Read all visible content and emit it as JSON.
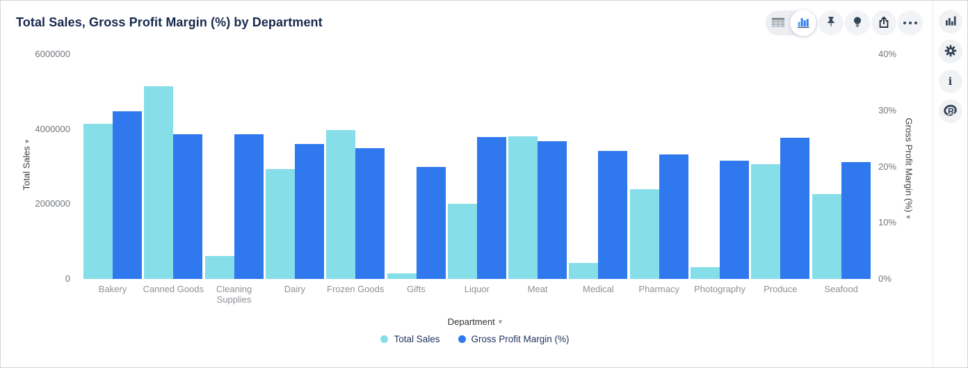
{
  "header": {
    "title": "Total Sales, Gross Profit Margin (%) by Department"
  },
  "glyphs": {
    "caret_down": "▾"
  },
  "toolbar": {
    "icons": [
      "table-view-icon",
      "bar-chart-view-icon",
      "pin-icon",
      "lightbulb-icon",
      "export-icon",
      "more-options-icon"
    ],
    "selected_view": "chart"
  },
  "right_rail": {
    "icons": [
      "chart-type-icon",
      "settings-gear-icon",
      "info-icon",
      "r-logo-icon"
    ],
    "info_glyph": "i",
    "r_glyph": "R"
  },
  "colors": {
    "series_total_sales": "#85dee8",
    "series_gross_profit_margin": "#2f78ee",
    "title_text": "#16294c",
    "icon_navy": "#33475b",
    "accent_blue": "#2f7ced"
  },
  "chart_data": {
    "type": "bar",
    "subtype": "grouped-dual-axis",
    "grid": false,
    "legend_position": "bottom-center",
    "categories": [
      "Bakery",
      "Canned Goods",
      "Cleaning Supplies",
      "Dairy",
      "Frozen Goods",
      "Gifts",
      "Liquor",
      "Meat",
      "Medical",
      "Pharmacy",
      "Photography",
      "Produce",
      "Seafood"
    ],
    "series": [
      {
        "name": "Total Sales",
        "axis": "left",
        "color": "#85dee8",
        "values": [
          4150000,
          5150000,
          620000,
          2930000,
          3970000,
          150000,
          2000000,
          3800000,
          430000,
          2400000,
          310000,
          3060000,
          2260000
        ]
      },
      {
        "name": "Gross Profit Margin (%)",
        "axis": "right",
        "color": "#2f78ee",
        "values": [
          29.9,
          25.8,
          25.7,
          24.0,
          23.3,
          20.0,
          25.3,
          24.5,
          22.8,
          22.2,
          21.0,
          25.2,
          20.8
        ]
      }
    ],
    "left_axis": {
      "label": "Total Sales",
      "min": 0,
      "max": 6000000,
      "ticks": [
        "6000000",
        "4000000",
        "2000000",
        "0"
      ]
    },
    "right_axis": {
      "label": "Gross Profit Margin (%)",
      "min": 0,
      "max": 40,
      "ticks": [
        "40%",
        "30%",
        "20%",
        "10%",
        "0%"
      ]
    },
    "x_axis": {
      "label": "Department"
    },
    "legend": [
      "Total Sales",
      "Gross Profit Margin (%)"
    ]
  }
}
